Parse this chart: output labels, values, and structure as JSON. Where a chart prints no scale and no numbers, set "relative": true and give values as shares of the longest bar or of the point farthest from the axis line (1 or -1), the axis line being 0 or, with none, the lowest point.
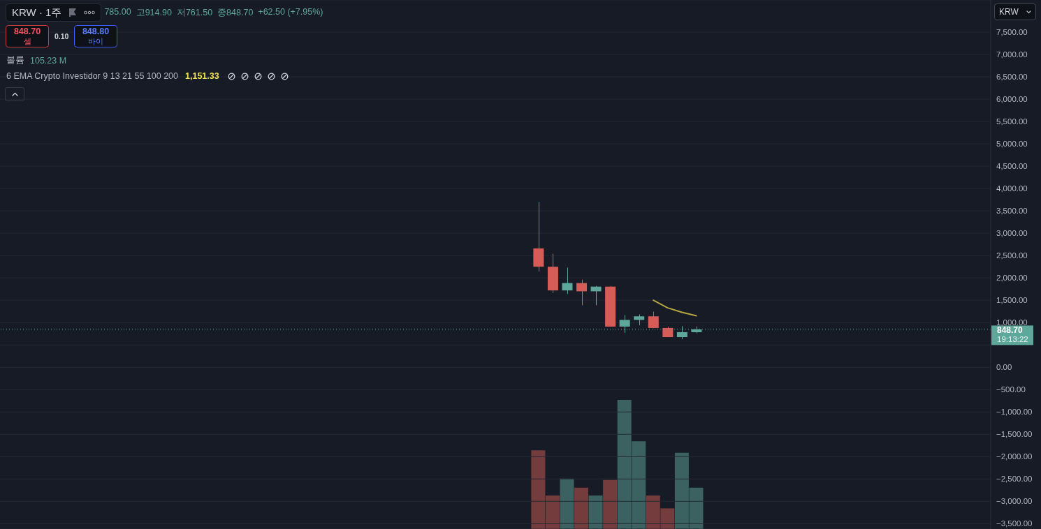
{
  "chart_data": [
    {
      "type": "candlestick",
      "title": "KRW · 1주",
      "categories": [
        null,
        null,
        null,
        null,
        null,
        null,
        null,
        null,
        null,
        null,
        null,
        null,
        null,
        null,
        null,
        null,
        null,
        null,
        null,
        null,
        null,
        null,
        null,
        null,
        null,
        null,
        null,
        null,
        null,
        null,
        null,
        null,
        null,
        null,
        null,
        null,
        null,
        null,
        null,
        null,
        null,
        null,
        null,
        null,
        null,
        null,
        null,
        null,
        null,
        null,
        null,
        null,
        null,
        null,
        null,
        null,
        null,
        null,
        null,
        null,
        null,
        null,
        null,
        null,
        null,
        null,
        null,
        null,
        null
      ],
      "ohlc": [
        null,
        null,
        null,
        null,
        null,
        null,
        null,
        null,
        null,
        null,
        null,
        null,
        null,
        null,
        null,
        null,
        null,
        null,
        null,
        null,
        null,
        null,
        null,
        null,
        null,
        null,
        null,
        null,
        null,
        null,
        null,
        null,
        null,
        null,
        null,
        null,
        null,
        [
          2660,
          3700,
          2140,
          2250
        ],
        [
          2250,
          2540,
          1660,
          1720
        ],
        [
          1720,
          2230,
          1640,
          1885
        ],
        [
          1885,
          1960,
          1390,
          1700
        ],
        [
          1700,
          1820,
          1390,
          1805
        ],
        [
          1805,
          1820,
          905,
          910
        ],
        [
          910,
          1170,
          770,
          1060
        ],
        [
          1060,
          1185,
          940,
          1140
        ],
        [
          1140,
          1245,
          875,
          880
        ],
        [
          880,
          905,
          675,
          675
        ],
        [
          675,
          920,
          630,
          786
        ],
        [
          785,
          914.9,
          761.5,
          848.7
        ],
        null,
        null,
        null,
        null,
        null,
        null,
        null,
        null,
        null,
        null,
        null,
        null,
        null,
        null,
        null,
        null,
        null,
        null,
        null,
        null
      ],
      "colors": [
        null,
        null,
        null,
        null,
        null,
        null,
        null,
        null,
        null,
        null,
        null,
        null,
        null,
        null,
        null,
        null,
        null,
        null,
        null,
        null,
        null,
        null,
        null,
        null,
        null,
        null,
        null,
        null,
        null,
        null,
        null,
        null,
        null,
        null,
        null,
        null,
        null,
        "#d65d57",
        "#d65d57",
        "#5ea89b",
        "#d65d57",
        "#5ea89b",
        "#d65d57",
        "#5ea89b",
        "#5ea89b",
        "#d65d57",
        "#d65d57",
        "#5ea89b",
        "#5ea89b",
        null,
        null,
        null,
        null,
        null,
        null,
        null,
        null,
        null,
        null,
        null,
        null,
        null,
        null,
        null,
        null,
        null,
        null,
        null,
        null
      ],
      "series": [
        {
          "type": "line",
          "color": "#b4a73f",
          "values": [
            null,
            null,
            null,
            null,
            null,
            null,
            null,
            null,
            null,
            null,
            null,
            null,
            null,
            null,
            null,
            null,
            null,
            null,
            null,
            null,
            null,
            null,
            null,
            null,
            null,
            null,
            null,
            null,
            null,
            null,
            null,
            null,
            null,
            null,
            null,
            null,
            null,
            null,
            null,
            null,
            null,
            null,
            null,
            null,
            null,
            1500,
            1330,
            1230,
            1151.33,
            null,
            null,
            null,
            null,
            null,
            null,
            null,
            null,
            null,
            null,
            null,
            null,
            null,
            null,
            null,
            null,
            null,
            null,
            null,
            null
          ]
        }
      ],
      "ylim": [
        -3620,
        8220
      ],
      "yticks": [
        {
          "value": 7500,
          "label": "7,500.00"
        },
        {
          "value": 7000,
          "label": "7,000.00"
        },
        {
          "value": 6500,
          "label": "6,500.00"
        },
        {
          "value": 6000,
          "label": "6,000.00"
        },
        {
          "value": 5500,
          "label": "5,500.00"
        },
        {
          "value": 5000,
          "label": "5,000.00"
        },
        {
          "value": 4500,
          "label": "4,500.00"
        },
        {
          "value": 4000,
          "label": "4,000.00"
        },
        {
          "value": 3500,
          "label": "3,500.00"
        },
        {
          "value": 3000,
          "label": "3,000.00"
        },
        {
          "value": 2500,
          "label": "2,500.00"
        },
        {
          "value": 2000,
          "label": "2,000.00"
        },
        {
          "value": 1500,
          "label": "1,500.00"
        },
        {
          "value": 1000,
          "label": "1,000.00"
        },
        {
          "value": 500,
          "label": null
        },
        {
          "value": 0,
          "label": "0.00"
        },
        {
          "value": -500,
          "label": "−500.00"
        },
        {
          "value": -1000,
          "label": "−1,000.00"
        },
        {
          "value": -1500,
          "label": "−1,500.00"
        },
        {
          "value": -2000,
          "label": "−2,000.00"
        },
        {
          "value": -2500,
          "label": "−2,500.00"
        },
        {
          "value": -3000,
          "label": "−3,000.00"
        },
        {
          "value": -3500,
          "label": "−3,500.00"
        }
      ],
      "grid": "y",
      "tick_labels": "y",
      "ref_lines": [
        {
          "axis": "y",
          "value": 848.7,
          "label": "848.70",
          "color": "#5ea89b",
          "line_style": "dotted"
        }
      ],
      "annotations": [
        "785.00",
        "고914.90",
        "저761.50",
        "종848.70",
        "+62.50 (+7.95%)",
        "848.70",
        "셀",
        "0.10",
        "848.80",
        "바이",
        "볼륨",
        "105.23 M",
        "6 EMA Crypto Investidor 9 13 21 55 100 200",
        "1,151.33",
        "KRW",
        "19:13:22"
      ]
    },
    {
      "type": "bar",
      "relative": true,
      "tick_labels": false,
      "categories": [
        null,
        null,
        null,
        null,
        null,
        null,
        null,
        null,
        null,
        null,
        null,
        null,
        null,
        null,
        null,
        null,
        null,
        null,
        null,
        null,
        null,
        null,
        null,
        null,
        null,
        null,
        null,
        null,
        null,
        null,
        null,
        null,
        null,
        null,
        null,
        null,
        null,
        null,
        null,
        null,
        null,
        null,
        null,
        null,
        null,
        null,
        null,
        null,
        null,
        null,
        null,
        null,
        null,
        null,
        null,
        null,
        null,
        null,
        null,
        null,
        null,
        null,
        null,
        null,
        null,
        null,
        null,
        null,
        null
      ],
      "values": [
        null,
        null,
        null,
        null,
        null,
        null,
        null,
        null,
        null,
        null,
        null,
        null,
        null,
        null,
        null,
        null,
        null,
        null,
        null,
        null,
        null,
        null,
        null,
        null,
        null,
        null,
        null,
        null,
        null,
        null,
        null,
        null,
        null,
        null,
        null,
        null,
        null,
        0.61,
        0.26,
        0.39,
        0.32,
        0.26,
        0.38,
        1,
        0.68,
        0.26,
        0.16,
        0.59,
        0.32,
        null,
        null,
        null,
        null,
        null,
        null,
        null,
        null,
        null,
        null,
        null,
        null,
        null,
        null,
        null,
        null,
        null,
        null,
        null,
        null
      ],
      "colors": [
        null,
        null,
        null,
        null,
        null,
        null,
        null,
        null,
        null,
        null,
        null,
        null,
        null,
        null,
        null,
        null,
        null,
        null,
        null,
        null,
        null,
        null,
        null,
        null,
        null,
        null,
        null,
        null,
        null,
        null,
        null,
        null,
        null,
        null,
        null,
        null,
        null,
        "#753c3d",
        "#753c3d",
        "#3b6261",
        "#753c3d",
        "#3b6261",
        "#753c3d",
        "#3b6261",
        "#3b6261",
        "#753c3d",
        "#753c3d",
        "#3b6261",
        "#3b6261",
        null,
        null,
        null,
        null,
        null,
        null,
        null,
        null,
        null,
        null,
        null,
        null,
        null,
        null,
        null,
        null,
        null,
        null,
        null,
        null
      ]
    }
  ]
}
